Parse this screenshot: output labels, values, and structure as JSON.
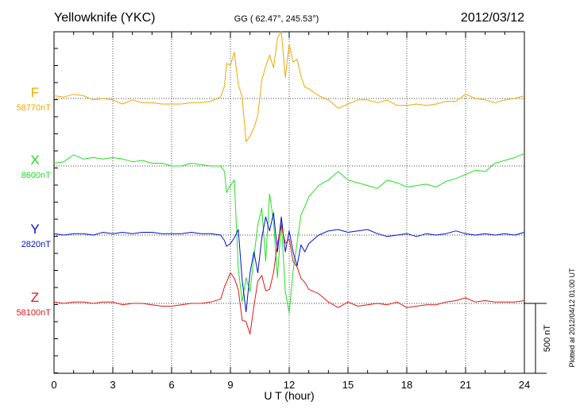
{
  "header": {
    "station": "Yellowknife (YKC)",
    "coords": "GG ( 62.47°, 245.53°)",
    "date": "2012/03/12"
  },
  "side_note": "Plotted at 2012/04/12 01:00 UT",
  "scale_label": "500 nT",
  "chart_data": {
    "type": "line",
    "xlabel": "U T (hour)",
    "xlim": [
      0,
      24
    ],
    "xticks": [
      0,
      3,
      6,
      9,
      12,
      15,
      18,
      21,
      24
    ],
    "scale_bar_nT": 500,
    "series": [
      {
        "name": "F",
        "baseline_label": "58770nT",
        "baseline": 58770,
        "color": "#f0a800",
        "x": [
          0,
          0.5,
          1,
          1.5,
          2,
          2.5,
          3,
          3.5,
          4,
          4.5,
          5,
          5.5,
          6,
          6.5,
          7,
          7.5,
          8,
          8.5,
          8.7,
          8.8,
          9,
          9.2,
          9.4,
          9.6,
          9.8,
          10,
          10.2,
          10.4,
          10.6,
          10.8,
          11,
          11.2,
          11.4,
          11.6,
          11.8,
          12,
          12.2,
          12.4,
          12.6,
          12.8,
          13,
          13.5,
          14,
          14.5,
          15,
          15.5,
          16,
          16.5,
          17,
          17.5,
          18,
          18.5,
          19,
          19.5,
          20,
          20.5,
          21,
          21.5,
          22,
          22.5,
          23,
          23.5,
          24
        ],
        "y": [
          58790,
          58780,
          58800,
          58790,
          58760,
          58770,
          58760,
          58730,
          58760,
          58740,
          58740,
          58730,
          58730,
          58730,
          58740,
          58740,
          58750,
          58780,
          58860,
          59020,
          59010,
          59100,
          58870,
          58780,
          58460,
          58500,
          58560,
          58650,
          58900,
          59000,
          59080,
          58990,
          59200,
          59250,
          58920,
          59160,
          59030,
          59050,
          58930,
          58850,
          58840,
          58790,
          58760,
          58700,
          58730,
          58760,
          58760,
          58740,
          58760,
          58720,
          58720,
          58730,
          58720,
          58730,
          58750,
          58750,
          58800,
          58770,
          58760,
          58740,
          58760,
          58770,
          58790
        ]
      },
      {
        "name": "X",
        "baseline_label": "8600nT",
        "baseline": 8600,
        "color": "#22e022",
        "x": [
          0,
          0.5,
          1,
          1.5,
          2,
          2.5,
          3,
          3.5,
          4,
          4.5,
          5,
          5.5,
          6,
          6.5,
          7,
          7.5,
          8,
          8.5,
          8.7,
          8.8,
          9,
          9.2,
          9.4,
          9.6,
          9.8,
          10,
          10.2,
          10.4,
          10.6,
          10.8,
          11,
          11.2,
          11.4,
          11.6,
          11.8,
          12,
          12.2,
          12.4,
          12.6,
          12.8,
          13,
          13.5,
          14,
          14.5,
          15,
          15.5,
          16,
          16.5,
          17,
          17.5,
          18,
          18.5,
          19,
          19.5,
          20,
          20.5,
          21,
          21.5,
          22,
          22.5,
          23,
          23.5,
          24
        ],
        "y": [
          8620,
          8630,
          8680,
          8650,
          8660,
          8650,
          8660,
          8650,
          8630,
          8640,
          8620,
          8620,
          8600,
          8600,
          8620,
          8610,
          8600,
          8600,
          8560,
          8410,
          8460,
          8500,
          7870,
          7630,
          7800,
          7700,
          7950,
          8180,
          8300,
          7920,
          8400,
          8200,
          7800,
          8200,
          7700,
          7550,
          7850,
          8050,
          8250,
          8310,
          8380,
          8460,
          8500,
          8560,
          8500,
          8480,
          8460,
          8440,
          8500,
          8480,
          8450,
          8460,
          8470,
          8450,
          8490,
          8510,
          8540,
          8570,
          8560,
          8620,
          8640,
          8660,
          8690
        ]
      },
      {
        "name": "Y",
        "baseline_label": "2820nT",
        "baseline": 2820,
        "color": "#0010d0",
        "x": [
          0,
          0.5,
          1,
          1.5,
          2,
          2.5,
          3,
          3.5,
          4,
          4.5,
          5,
          5.5,
          6,
          6.5,
          7,
          7.5,
          8,
          8.5,
          8.7,
          8.8,
          9,
          9.2,
          9.4,
          9.6,
          9.8,
          10,
          10.2,
          10.4,
          10.6,
          10.8,
          11,
          11.2,
          11.4,
          11.6,
          11.8,
          12,
          12.2,
          12.4,
          12.6,
          12.8,
          13,
          13.5,
          14,
          14.5,
          15,
          15.5,
          16,
          16.5,
          17,
          17.5,
          18,
          18.5,
          19,
          19.5,
          20,
          20.5,
          21,
          21.5,
          22,
          22.5,
          23,
          23.5,
          24
        ],
        "y": [
          2830,
          2820,
          2830,
          2830,
          2820,
          2840,
          2830,
          2840,
          2830,
          2840,
          2840,
          2830,
          2830,
          2830,
          2840,
          2830,
          2830,
          2820,
          2780,
          2740,
          2760,
          2800,
          2860,
          2500,
          2270,
          2550,
          2700,
          2550,
          2800,
          2950,
          2850,
          2980,
          2700,
          2950,
          2700,
          2850,
          2700,
          2600,
          2750,
          2700,
          2760,
          2820,
          2850,
          2860,
          2840,
          2850,
          2860,
          2830,
          2810,
          2820,
          2830,
          2810,
          2830,
          2820,
          2830,
          2850,
          2830,
          2820,
          2830,
          2820,
          2830,
          2820,
          2840
        ]
      },
      {
        "name": "Z",
        "baseline_label": "58100nT",
        "baseline": 58100,
        "color": "#e01818",
        "x": [
          0,
          0.5,
          1,
          1.5,
          2,
          2.5,
          3,
          3.5,
          4,
          4.5,
          5,
          5.5,
          6,
          6.5,
          7,
          7.5,
          8,
          8.5,
          8.7,
          8.8,
          9,
          9.2,
          9.4,
          9.6,
          9.8,
          10,
          10.2,
          10.4,
          10.6,
          10.8,
          11,
          11.2,
          11.4,
          11.6,
          11.8,
          12,
          12.2,
          12.4,
          12.6,
          12.8,
          13,
          13.5,
          14,
          14.5,
          15,
          15.5,
          16,
          16.5,
          17,
          17.5,
          18,
          18.5,
          19,
          19.5,
          20,
          20.5,
          21,
          21.5,
          22,
          22.5,
          23,
          23.5,
          24
        ],
        "y": [
          58110,
          58100,
          58110,
          58110,
          58100,
          58110,
          58110,
          58090,
          58100,
          58100,
          58090,
          58080,
          58080,
          58090,
          58100,
          58100,
          58110,
          58130,
          58220,
          58250,
          58320,
          58280,
          58200,
          57980,
          57970,
          57880,
          58080,
          58260,
          58300,
          58190,
          58200,
          58320,
          58530,
          58660,
          58530,
          58560,
          58400,
          58360,
          58280,
          58250,
          58200,
          58170,
          58110,
          58070,
          58110,
          58080,
          58090,
          58100,
          58090,
          58110,
          58070,
          58080,
          58090,
          58090,
          58110,
          58120,
          58140,
          58110,
          58120,
          58110,
          58110,
          58110,
          58120
        ]
      }
    ]
  }
}
